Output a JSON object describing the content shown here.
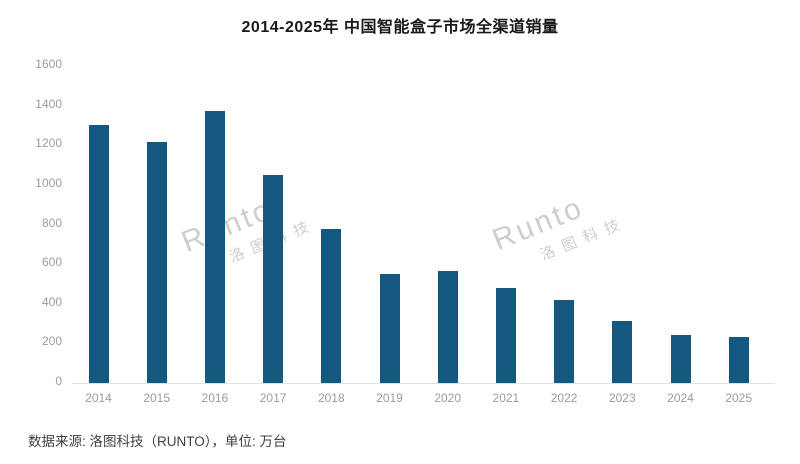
{
  "chart_data": {
    "type": "bar",
    "title": "2014-2025年 中国智能盒子市场全渠道销量",
    "categories": [
      "2014",
      "2015",
      "2016",
      "2017",
      "2018",
      "2019",
      "2020",
      "2021",
      "2022",
      "2023",
      "2024",
      "2025"
    ],
    "values": [
      1300,
      1215,
      1375,
      1050,
      775,
      550,
      565,
      480,
      420,
      315,
      240,
      230
    ],
    "unit": "万台",
    "xlabel": "",
    "ylabel": "",
    "ylim": [
      0,
      1600
    ],
    "yticks": [
      0,
      200,
      400,
      600,
      800,
      1000,
      1200,
      1400,
      1600
    ],
    "grid": false,
    "legend_position": "none"
  },
  "source_note": "数据来源: 洛图科技（RUNTO），单位: 万台",
  "watermark": {
    "brand": "Runto",
    "brand_cn": "洛图科技"
  },
  "colors": {
    "bar": "#14587F",
    "title": "#1a1a1a",
    "axis_label": "#9b9b9b",
    "baseline": "#e0e0e0",
    "watermark": "#c6c6c6",
    "source": "#3f3f3f",
    "background": "#ffffff"
  }
}
